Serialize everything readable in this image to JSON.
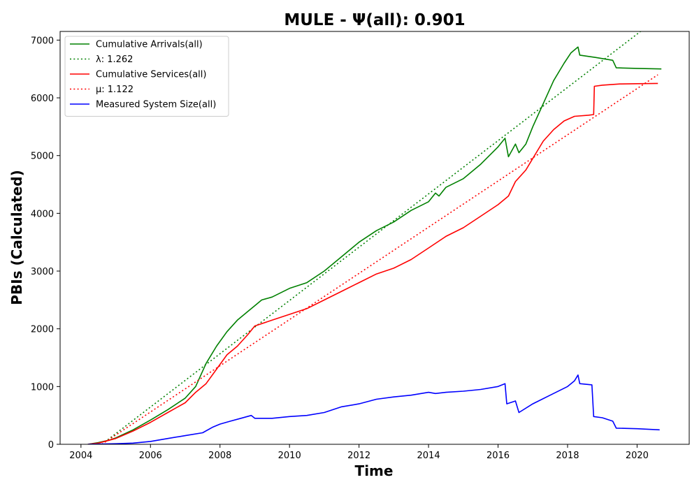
{
  "chart_data": {
    "type": "line",
    "title": "MULE -  Ψ(all): 0.901",
    "xlabel": "Time",
    "ylabel": "PBIs (Calculated)",
    "xlim": [
      2003.4,
      2021.5
    ],
    "ylim": [
      0,
      7150
    ],
    "x_ticks": [
      2004,
      2006,
      2008,
      2010,
      2012,
      2014,
      2016,
      2018,
      2020
    ],
    "y_ticks": [
      0,
      1000,
      2000,
      3000,
      4000,
      5000,
      6000,
      7000
    ],
    "grid": false,
    "legend_position": "top-left",
    "series": [
      {
        "name": "Cumulative Arrivals(all)",
        "style": "solid",
        "color": "#008000",
        "x": [
          2004.2,
          2004.5,
          2004.8,
          2005.0,
          2005.5,
          2006.0,
          2006.5,
          2007.0,
          2007.3,
          2007.6,
          2007.9,
          2008.2,
          2008.5,
          2008.8,
          2009.0,
          2009.2,
          2009.5,
          2010.0,
          2010.5,
          2011.0,
          2011.5,
          2012.0,
          2012.5,
          2013.0,
          2013.5,
          2014.0,
          2014.2,
          2014.3,
          2014.5,
          2015.0,
          2015.5,
          2016.0,
          2016.2,
          2016.3,
          2016.5,
          2016.6,
          2016.8,
          2017.0,
          2017.3,
          2017.6,
          2017.9,
          2018.1,
          2018.3,
          2018.35,
          2018.8,
          2019.3,
          2019.4,
          2020.0,
          2020.7
        ],
        "values": [
          0,
          30,
          70,
          110,
          250,
          420,
          600,
          800,
          1000,
          1400,
          1700,
          1950,
          2150,
          2300,
          2400,
          2500,
          2550,
          2700,
          2800,
          3000,
          3250,
          3500,
          3700,
          3850,
          4050,
          4200,
          4350,
          4300,
          4450,
          4600,
          4850,
          5150,
          5300,
          4980,
          5200,
          5050,
          5200,
          5500,
          5900,
          6300,
          6600,
          6780,
          6880,
          6740,
          6700,
          6650,
          6520,
          6510,
          6500
        ]
      },
      {
        "name": "λ: 1.262",
        "style": "dotted",
        "color": "#008000",
        "x": [
          2004.6,
          2020.1
        ],
        "values": [
          0,
          7150
        ]
      },
      {
        "name": "Cumulative Services(all)",
        "style": "solid",
        "color": "#ff0000",
        "x": [
          2004.2,
          2004.5,
          2005.0,
          2005.5,
          2006.0,
          2006.5,
          2007.0,
          2007.3,
          2007.6,
          2007.9,
          2008.2,
          2008.5,
          2008.8,
          2009.0,
          2009.5,
          2010.0,
          2010.5,
          2011.0,
          2011.5,
          2012.0,
          2012.5,
          2013.0,
          2013.5,
          2014.0,
          2014.5,
          2015.0,
          2015.5,
          2016.0,
          2016.3,
          2016.5,
          2016.8,
          2017.0,
          2017.3,
          2017.6,
          2017.9,
          2018.2,
          2018.6,
          2018.75,
          2018.77,
          2019.0,
          2019.5,
          2020.0,
          2020.6
        ],
        "values": [
          0,
          20,
          100,
          230,
          380,
          550,
          720,
          900,
          1050,
          1300,
          1550,
          1700,
          1900,
          2050,
          2150,
          2250,
          2350,
          2500,
          2650,
          2800,
          2950,
          3050,
          3200,
          3400,
          3600,
          3750,
          3950,
          4150,
          4300,
          4550,
          4750,
          4950,
          5250,
          5450,
          5600,
          5680,
          5700,
          5710,
          6200,
          6220,
          6240,
          6245,
          6250
        ]
      },
      {
        "name": "μ: 1.122",
        "style": "dotted",
        "color": "#ff0000",
        "x": [
          2004.6,
          2020.6
        ],
        "values": [
          0,
          6400
        ]
      },
      {
        "name": "Measured System Size(all)",
        "style": "solid",
        "color": "#0000ff",
        "x": [
          2004.2,
          2005.0,
          2005.5,
          2006.0,
          2006.5,
          2007.0,
          2007.5,
          2007.8,
          2008.0,
          2008.3,
          2008.6,
          2008.9,
          2009.0,
          2009.5,
          2010.0,
          2010.5,
          2011.0,
          2011.5,
          2012.0,
          2012.5,
          2013.0,
          2013.5,
          2014.0,
          2014.2,
          2014.5,
          2015.0,
          2015.5,
          2016.0,
          2016.2,
          2016.25,
          2016.5,
          2016.6,
          2017.0,
          2017.5,
          2018.0,
          2018.2,
          2018.3,
          2018.35,
          2018.7,
          2018.75,
          2019.0,
          2019.3,
          2019.4,
          2020.0,
          2020.65
        ],
        "values": [
          0,
          10,
          20,
          50,
          100,
          150,
          200,
          300,
          350,
          400,
          450,
          500,
          450,
          450,
          480,
          500,
          550,
          650,
          700,
          780,
          820,
          850,
          900,
          880,
          900,
          920,
          950,
          1000,
          1050,
          700,
          750,
          550,
          700,
          850,
          1000,
          1100,
          1200,
          1050,
          1030,
          480,
          460,
          400,
          280,
          270,
          250
        ]
      }
    ]
  }
}
